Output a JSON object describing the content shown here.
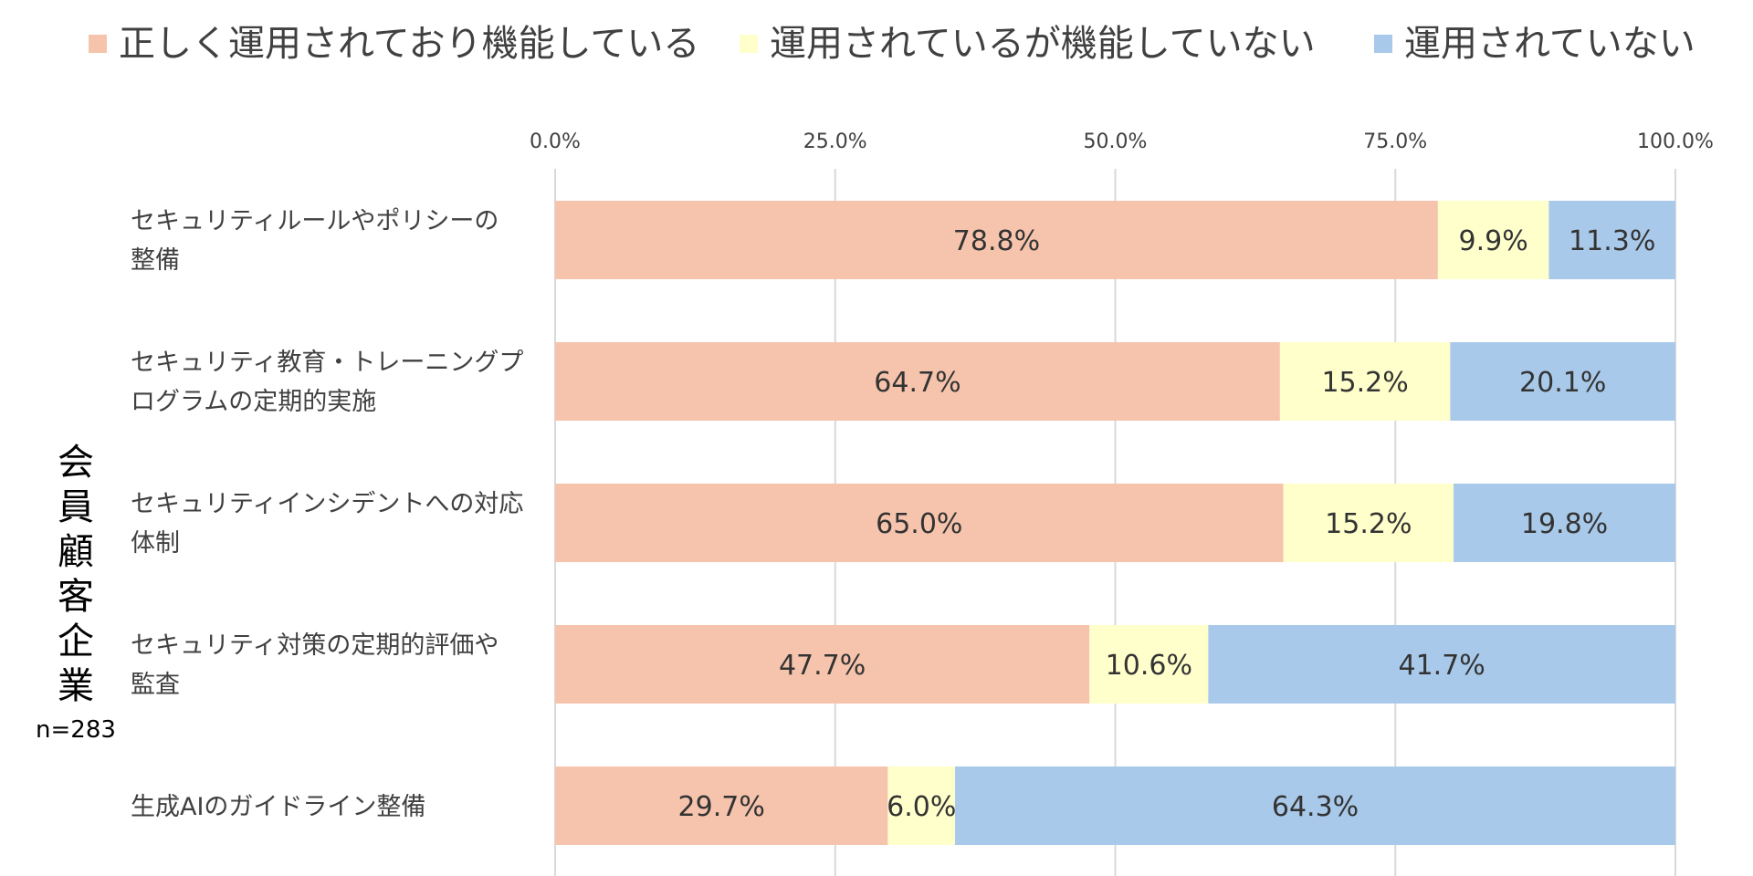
{
  "colors": {
    "correctly_operating": "#F6C4AC",
    "operating_not_functioning": "#FFFFCC",
    "not_operating": "#A9C9EA",
    "grid": "#D9D9D9"
  },
  "group_label": {
    "chars": [
      "会",
      "員",
      "顧",
      "客",
      "企",
      "業"
    ],
    "n": "n=283"
  },
  "chart_data": {
    "type": "bar",
    "orientation": "horizontal",
    "stacked": true,
    "xlim": [
      0,
      100
    ],
    "ticks": [
      "0.0%",
      "25.0%",
      "50.0%",
      "75.0%",
      "100.0%"
    ],
    "tick_values": [
      0,
      25,
      50,
      75,
      100
    ],
    "legend_position": "top",
    "grid": true,
    "categories": [
      [
        "セキュリティルールやポリシーの",
        "整備"
      ],
      [
        "セキュリティ教育・トレーニングプ",
        "ログラムの定期的実施"
      ],
      [
        "セキュリティインシデントへの対応",
        "体制"
      ],
      [
        "セキュリティ対策の定期的評価や",
        "監査"
      ],
      [
        "生成AIのガイドライン整備"
      ]
    ],
    "series": [
      {
        "name": "正しく運用されており機能している",
        "color_key": "correctly_operating",
        "values": [
          78.8,
          64.7,
          65.0,
          47.7,
          29.7
        ],
        "labels": [
          "78.8%",
          "64.7%",
          "65.0%",
          "47.7%",
          "29.7%"
        ]
      },
      {
        "name": "運用されているが機能していない",
        "color_key": "operating_not_functioning",
        "values": [
          9.9,
          15.2,
          15.2,
          10.6,
          6.0
        ],
        "labels": [
          "9.9%",
          "15.2%",
          "15.2%",
          "10.6%",
          "6.0%"
        ]
      },
      {
        "name": "運用されていない",
        "color_key": "not_operating",
        "values": [
          11.3,
          20.1,
          19.8,
          41.7,
          64.3
        ],
        "labels": [
          "11.3%",
          "20.1%",
          "19.8%",
          "41.7%",
          "64.3%"
        ]
      }
    ]
  }
}
